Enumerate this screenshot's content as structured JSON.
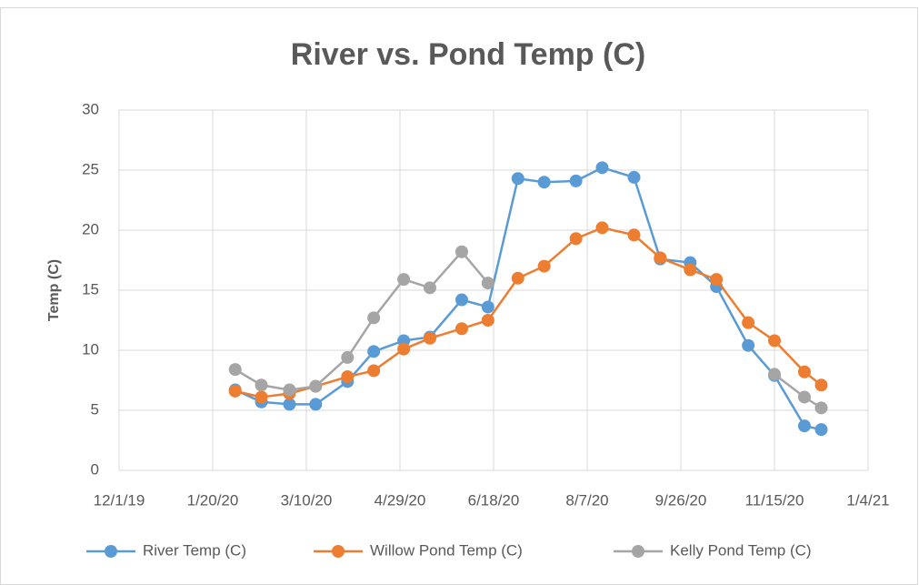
{
  "chart_data": {
    "type": "line",
    "title": "River vs. Pond Temp (C)",
    "ylabel": "Temp (C)",
    "x": [
      "2/1/20",
      "2/15/20",
      "3/1/20",
      "3/15/20",
      "4/1/20",
      "4/15/20",
      "5/1/20",
      "5/15/20",
      "6/1/20",
      "6/15/20",
      "7/1/20",
      "7/15/20",
      "8/1/20",
      "8/15/20",
      "9/1/20",
      "9/15/20",
      "10/1/20",
      "10/15/20",
      "11/1/20",
      "11/15/20",
      "12/1/20",
      "12/10/20"
    ],
    "series": [
      {
        "name": "River Temp (C)",
        "color": "#5b9bd5",
        "values": [
          6.7,
          5.7,
          5.5,
          5.5,
          7.4,
          9.9,
          10.8,
          11.1,
          14.2,
          13.6,
          24.3,
          24.0,
          24.1,
          25.2,
          24.4,
          17.6,
          17.3,
          15.3,
          10.4,
          7.9,
          3.7,
          3.4
        ]
      },
      {
        "name": "Willow Pond Temp (C)",
        "color": "#ed7d31",
        "values": [
          6.6,
          6.1,
          6.4,
          7.0,
          7.8,
          8.3,
          10.1,
          11.0,
          11.8,
          12.5,
          16.0,
          17.0,
          19.3,
          20.2,
          19.6,
          17.7,
          16.7,
          15.9,
          12.3,
          10.8,
          8.2,
          7.1
        ]
      },
      {
        "name": "Kelly Pond Temp (C)",
        "color": "#a5a5a5",
        "values": [
          8.4,
          7.1,
          6.7,
          7.0,
          9.4,
          12.7,
          15.9,
          15.2,
          18.2,
          15.6,
          null,
          null,
          null,
          null,
          null,
          null,
          null,
          null,
          null,
          8.0,
          6.1,
          5.2
        ]
      }
    ],
    "xlim": [
      "12/1/19",
      "1/4/21"
    ],
    "xticks": [
      "12/1/19",
      "1/20/20",
      "3/10/20",
      "4/29/20",
      "6/18/20",
      "8/7/20",
      "9/26/20",
      "11/15/20",
      "1/4/21"
    ],
    "ylim": [
      0,
      30
    ],
    "yticks": [
      0,
      5,
      10,
      15,
      20,
      25,
      30
    ],
    "grid": true,
    "legend": "bottom"
  }
}
